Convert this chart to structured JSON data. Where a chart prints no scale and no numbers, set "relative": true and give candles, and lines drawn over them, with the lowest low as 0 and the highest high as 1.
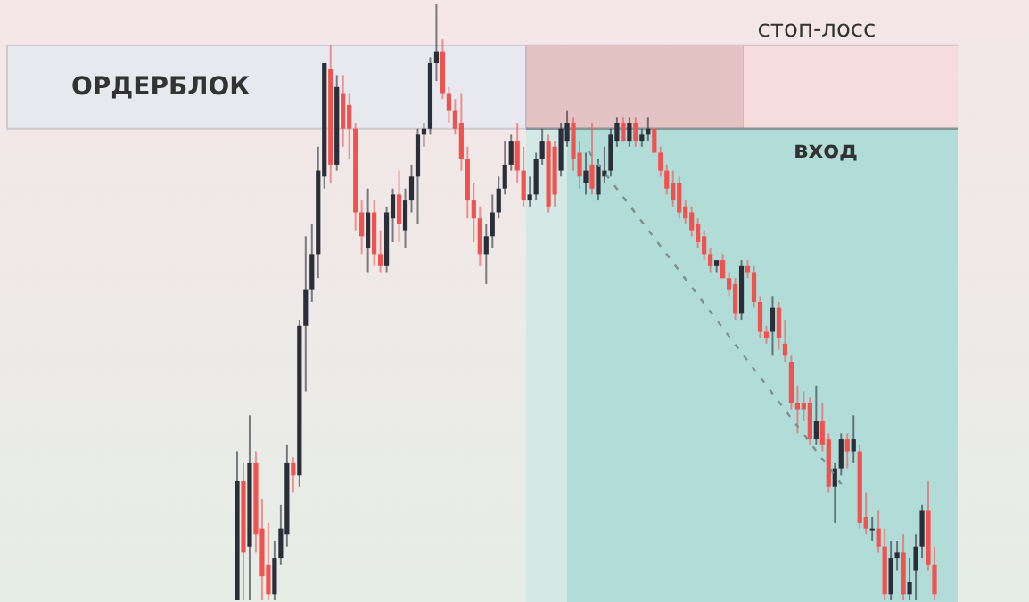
{
  "chart_data": {
    "type": "candlestick",
    "relative": true,
    "annotations": [
      "ОРДЕРБЛОК"
    ],
    "ref_lines": [
      {
        "axis": "y",
        "value": 0.79,
        "label": "вход",
        "color": "#8a9598"
      },
      {
        "axis": "y",
        "value": 0.93,
        "label": "стоп-лосс",
        "color": "#d9c4c6"
      }
    ],
    "categories": [
      null,
      null,
      null,
      null,
      null,
      null,
      null,
      null,
      null,
      null,
      null,
      null,
      null,
      null,
      null,
      null,
      null,
      null,
      null,
      null,
      null,
      null,
      null,
      null,
      null,
      null,
      null,
      null,
      null,
      null,
      null,
      null,
      null,
      null,
      null,
      null,
      null,
      null,
      null,
      null,
      null,
      null,
      null,
      null,
      null,
      null,
      null,
      null,
      null,
      null,
      null,
      null,
      null,
      null,
      null,
      null,
      null,
      null,
      null,
      null,
      null,
      null,
      null,
      null,
      null,
      null,
      null,
      null,
      null,
      null,
      null,
      null,
      null,
      null,
      null,
      null,
      null,
      null,
      null,
      null,
      null,
      null,
      null,
      null,
      null,
      null,
      null,
      null,
      null,
      null,
      null,
      null,
      null,
      null,
      null,
      null,
      null,
      null,
      null,
      null,
      null,
      null,
      null,
      null,
      null,
      null,
      null,
      null,
      null,
      null,
      null,
      null,
      null
    ],
    "ohlc": [
      [
        0,
        0.25,
        0,
        0.2
      ],
      [
        0.2,
        0.23,
        0,
        0.08
      ],
      [
        0.09,
        0.31,
        0,
        0.23
      ],
      [
        0.23,
        0.25,
        0.08,
        0.11
      ],
      [
        0.12,
        0.17,
        0,
        0.04
      ],
      [
        0.06,
        0.13,
        0,
        0.01
      ],
      [
        0.01,
        0.1,
        0,
        0.07
      ],
      [
        0.07,
        0.16,
        0.06,
        0.12
      ],
      [
        0.11,
        0.26,
        0.09,
        0.23
      ],
      [
        0.23,
        0.24,
        0.18,
        0.21
      ],
      [
        0.21,
        0.47,
        0.19,
        0.46
      ],
      [
        0.46,
        0.61,
        0.35,
        0.52
      ],
      [
        0.52,
        0.63,
        0.5,
        0.58
      ],
      [
        0.58,
        0.76,
        0.54,
        0.72
      ],
      [
        0.71,
        0.9,
        0.69,
        0.9
      ],
      [
        0.89,
        0.93,
        0.7,
        0.73
      ],
      [
        0.73,
        0.88,
        0.72,
        0.86
      ],
      [
        0.85,
        0.88,
        0.76,
        0.79
      ],
      [
        0.83,
        0.85,
        0.74,
        0.79
      ],
      [
        0.79,
        0.8,
        0.62,
        0.65
      ],
      [
        0.65,
        0.67,
        0.58,
        0.61
      ],
      [
        0.59,
        0.69,
        0.55,
        0.65
      ],
      [
        0.65,
        0.67,
        0.56,
        0.58
      ],
      [
        0.58,
        0.62,
        0.55,
        0.56
      ],
      [
        0.56,
        0.66,
        0.55,
        0.65
      ],
      [
        0.64,
        0.69,
        0.6,
        0.68
      ],
      [
        0.68,
        0.72,
        0.6,
        0.63
      ],
      [
        0.62,
        0.69,
        0.59,
        0.67
      ],
      [
        0.67,
        0.73,
        0.65,
        0.71
      ],
      [
        0.71,
        0.79,
        0.63,
        0.78
      ],
      [
        0.78,
        0.8,
        0.76,
        0.79
      ],
      [
        0.79,
        0.91,
        0.78,
        0.9
      ],
      [
        0.9,
        1,
        0.87,
        0.92
      ],
      [
        0.92,
        0.94,
        0.84,
        0.85
      ],
      [
        0.85,
        0.86,
        0.8,
        0.82
      ],
      [
        0.82,
        0.84,
        0.78,
        0.79
      ],
      [
        0.8,
        0.85,
        0.72,
        0.74
      ],
      [
        0.74,
        0.76,
        0.64,
        0.67
      ],
      [
        0.67,
        0.7,
        0.6,
        0.64
      ],
      [
        0.64,
        0.66,
        0.56,
        0.58
      ],
      [
        0.58,
        0.63,
        0.53,
        0.61
      ],
      [
        0.61,
        0.68,
        0.59,
        0.65
      ],
      [
        0.65,
        0.71,
        0.64,
        0.69
      ],
      [
        0.69,
        0.77,
        0.68,
        0.73
      ],
      [
        0.73,
        0.78,
        0.72,
        0.77
      ],
      [
        0.77,
        0.8,
        0.7,
        0.72
      ],
      [
        0.72,
        0.76,
        0.66,
        0.67
      ],
      [
        0.67,
        0.71,
        0.66,
        0.68
      ],
      [
        0.68,
        0.75,
        0.67,
        0.74
      ],
      [
        0.74,
        0.79,
        0.73,
        0.77
      ],
      [
        0.77,
        0.78,
        0.65,
        0.66
      ],
      [
        0.76,
        0.77,
        0.66,
        0.68
      ],
      [
        0.72,
        0.8,
        0.71,
        0.79
      ],
      [
        0.77,
        0.82,
        0.76,
        0.8
      ],
      [
        0.8,
        0.81,
        0.72,
        0.74
      ],
      [
        0.75,
        0.77,
        0.69,
        0.71
      ],
      [
        0.7,
        0.75,
        0.68,
        0.72
      ],
      [
        0.73,
        0.8,
        0.68,
        0.69
      ],
      [
        0.68,
        0.74,
        0.67,
        0.73
      ],
      [
        0.71,
        0.76,
        0.7,
        0.72
      ],
      [
        0.72,
        0.79,
        0.71,
        0.78
      ],
      [
        0.77,
        0.81,
        0.76,
        0.8
      ],
      [
        0.8,
        0.81,
        0.77,
        0.77
      ],
      [
        0.77,
        0.81,
        0.76,
        0.8
      ],
      [
        0.8,
        0.81,
        0.76,
        0.77
      ],
      [
        0.77,
        0.79,
        0.76,
        0.78
      ],
      [
        0.78,
        0.81,
        0.77,
        0.79
      ],
      [
        0.79,
        0.79,
        0.75,
        0.75
      ],
      [
        0.75,
        0.76,
        0.71,
        0.72
      ],
      [
        0.72,
        0.73,
        0.68,
        0.69
      ],
      [
        0.7,
        0.72,
        0.66,
        0.67
      ],
      [
        0.7,
        0.71,
        0.64,
        0.65
      ],
      [
        0.66,
        0.67,
        0.63,
        0.64
      ],
      [
        0.65,
        0.66,
        0.61,
        0.62
      ],
      [
        0.63,
        0.64,
        0.59,
        0.6
      ],
      [
        0.61,
        0.62,
        0.57,
        0.58
      ],
      [
        0.58,
        0.59,
        0.55,
        0.56
      ],
      [
        0.56,
        0.57,
        0.55,
        0.57
      ],
      [
        0.57,
        0.58,
        0.54,
        0.54
      ],
      [
        0.54,
        0.55,
        0.51,
        0.52
      ],
      [
        0.53,
        0.54,
        0.47,
        0.48
      ],
      [
        0.48,
        0.57,
        0.47,
        0.56
      ],
      [
        0.56,
        0.57,
        0.54,
        0.55
      ],
      [
        0.55,
        0.56,
        0.49,
        0.5
      ],
      [
        0.5,
        0.51,
        0.44,
        0.45
      ],
      [
        0.45,
        0.46,
        0.43,
        0.44
      ],
      [
        0.45,
        0.51,
        0.41,
        0.49
      ],
      [
        0.49,
        0.5,
        0.42,
        0.44
      ],
      [
        0.43,
        0.47,
        0.4,
        0.41
      ],
      [
        0.4,
        0.41,
        0.32,
        0.33
      ],
      [
        0.33,
        0.36,
        0.28,
        0.32
      ],
      [
        0.33,
        0.35,
        0.3,
        0.32
      ],
      [
        0.33,
        0.34,
        0.26,
        0.27
      ],
      [
        0.27,
        0.36,
        0.26,
        0.3
      ],
      [
        0.3,
        0.33,
        0.25,
        0.26
      ],
      [
        0.27,
        0.28,
        0.18,
        0.19
      ],
      [
        0.19,
        0.23,
        0.13,
        0.22
      ],
      [
        0.22,
        0.28,
        0.21,
        0.27
      ],
      [
        0.27,
        0.28,
        0.22,
        0.25
      ],
      [
        0.25,
        0.31,
        0.23,
        0.27
      ],
      [
        0.25,
        0.26,
        0.12,
        0.13
      ],
      [
        0.14,
        0.18,
        0.11,
        0.12
      ],
      [
        0.12,
        0.14,
        0.1,
        0.12
      ],
      [
        0.12,
        0.15,
        0.08,
        0.09
      ],
      [
        0.09,
        0.12,
        0,
        0.01
      ],
      [
        0.01,
        0.1,
        0,
        0.07
      ],
      [
        0.07,
        0.1,
        0.05,
        0.08
      ],
      [
        0.08,
        0.11,
        0,
        0.01
      ],
      [
        0.01,
        0.07,
        0,
        0.03
      ],
      [
        0.05,
        0.11,
        0,
        0.09
      ],
      [
        0.09,
        0.16,
        0.07,
        0.15
      ],
      [
        0.15,
        0.2,
        0.05,
        0.06
      ],
      [
        0.06,
        0.09,
        0,
        0.01
      ]
    ]
  }
}
